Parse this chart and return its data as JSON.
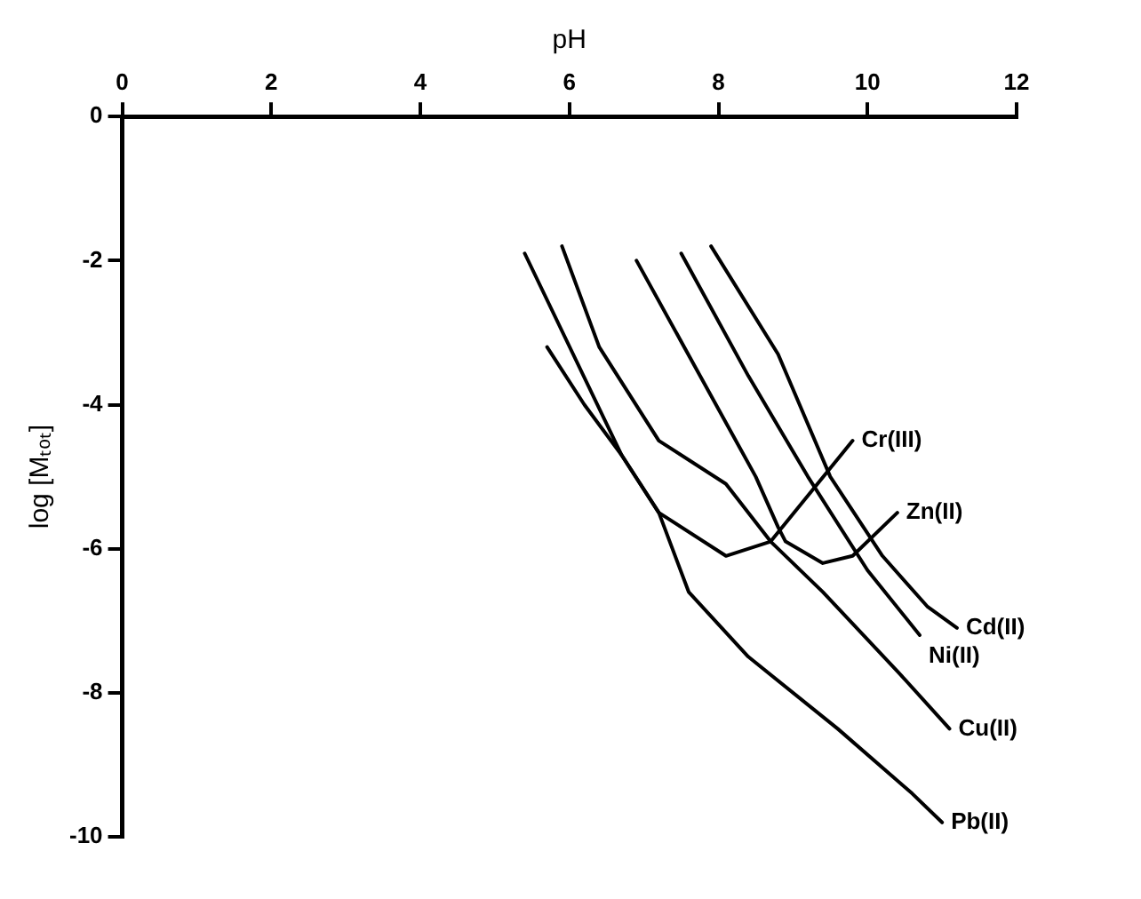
{
  "chart_data": {
    "type": "line",
    "xlabel": "pH",
    "ylabel": "log [Mₜₒₜ]",
    "xlim": [
      0,
      12
    ],
    "xticks": [
      0,
      2,
      4,
      6,
      8,
      10,
      12
    ],
    "ylim": [
      -10,
      0
    ],
    "yticks": [
      -10,
      -8,
      -6,
      -4,
      -2,
      0
    ],
    "grid": false,
    "legend": false,
    "marker": "none",
    "line_style": "solid",
    "series": [
      {
        "name": "Cr(III)",
        "color": "#000000",
        "x": [
          5.4,
          6.7,
          7.2,
          8.1,
          8.7,
          9.8
        ],
        "values": [
          -1.9,
          -4.7,
          -5.5,
          -6.1,
          -5.9,
          -4.5
        ]
      },
      {
        "name": "Zn(II)",
        "color": "#000000",
        "x": [
          6.9,
          7.7,
          8.5,
          8.8,
          8.9,
          9.4,
          9.8,
          10.4
        ],
        "values": [
          -2.0,
          -3.5,
          -5.0,
          -5.7,
          -5.9,
          -6.2,
          -6.1,
          -5.5
        ]
      },
      {
        "name": "Cd(II)",
        "color": "#000000",
        "x": [
          7.9,
          8.8,
          9.5,
          10.2,
          10.8,
          11.2
        ],
        "values": [
          -1.8,
          -3.3,
          -5.0,
          -6.1,
          -6.8,
          -7.1
        ]
      },
      {
        "name": "Ni(II)",
        "color": "#000000",
        "x": [
          7.5,
          8.4,
          9.2,
          10.0,
          10.7
        ],
        "values": [
          -1.9,
          -3.6,
          -5.0,
          -6.3,
          -7.2
        ]
      },
      {
        "name": "Cu(II)",
        "color": "#000000",
        "x": [
          5.9,
          6.4,
          7.2,
          8.1,
          8.7,
          9.4,
          10.4,
          11.1
        ],
        "values": [
          -1.8,
          -3.2,
          -4.5,
          -5.1,
          -5.9,
          -6.6,
          -7.7,
          -8.5
        ]
      },
      {
        "name": "Pb(II)",
        "color": "#000000",
        "x": [
          5.7,
          6.2,
          6.7,
          7.2,
          7.6,
          8.4,
          9.6,
          10.6,
          11.0
        ],
        "values": [
          -3.2,
          -4.0,
          -4.7,
          -5.5,
          -6.6,
          -7.5,
          -8.5,
          -9.4,
          -9.8
        ]
      }
    ]
  }
}
